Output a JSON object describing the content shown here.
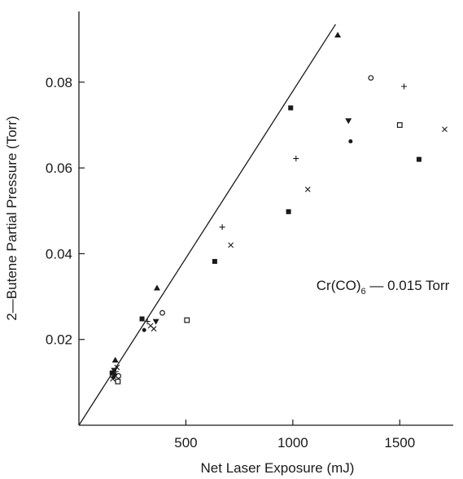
{
  "chart_data": {
    "type": "scatter",
    "xlabel": "Net Laser Exposure (mJ)",
    "ylabel": "2—Butene Partial Pressure (Torr)",
    "xlim": [
      0,
      1750
    ],
    "ylim": [
      0,
      0.0965
    ],
    "xticks": [
      500,
      1000,
      1500
    ],
    "xtick_labels": [
      "500",
      "1000",
      "1500"
    ],
    "yticks": [
      0.02,
      0.04,
      0.06,
      0.08
    ],
    "ytick_labels": [
      "0.02",
      "0.04",
      "0.06",
      "0.08"
    ],
    "grid": false,
    "annotation": {
      "prefix": "Cr(CO)",
      "subscript": "6",
      "suffix": " — 0.015 Torr",
      "x": 1110,
      "y": 0.0315
    },
    "fit_line": {
      "x": [
        0,
        1200
      ],
      "y": [
        0,
        0.0935
      ]
    },
    "points": [
      {
        "x": 155,
        "y": 0.0122,
        "marker": "filled-square"
      },
      {
        "x": 158,
        "y": 0.0108,
        "marker": "x"
      },
      {
        "x": 162,
        "y": 0.0112,
        "marker": "filled-circle"
      },
      {
        "x": 165,
        "y": 0.0128,
        "marker": "filled-down-triangle"
      },
      {
        "x": 168,
        "y": 0.0118,
        "marker": "filled-circle"
      },
      {
        "x": 170,
        "y": 0.0152,
        "marker": "filled-triangle"
      },
      {
        "x": 172,
        "y": 0.0125,
        "marker": "plus"
      },
      {
        "x": 178,
        "y": 0.0135,
        "marker": "x"
      },
      {
        "x": 182,
        "y": 0.0102,
        "marker": "open-square"
      },
      {
        "x": 185,
        "y": 0.0115,
        "marker": "open-circle"
      },
      {
        "x": 295,
        "y": 0.0248,
        "marker": "filled-square"
      },
      {
        "x": 305,
        "y": 0.0222,
        "marker": "filled-circle"
      },
      {
        "x": 320,
        "y": 0.0242,
        "marker": "plus"
      },
      {
        "x": 335,
        "y": 0.0232,
        "marker": "x"
      },
      {
        "x": 350,
        "y": 0.0225,
        "marker": "x"
      },
      {
        "x": 360,
        "y": 0.0242,
        "marker": "filled-down-triangle"
      },
      {
        "x": 365,
        "y": 0.032,
        "marker": "filled-triangle"
      },
      {
        "x": 390,
        "y": 0.0262,
        "marker": "open-circle"
      },
      {
        "x": 505,
        "y": 0.0245,
        "marker": "open-square"
      },
      {
        "x": 635,
        "y": 0.0382,
        "marker": "filled-square"
      },
      {
        "x": 670,
        "y": 0.0462,
        "marker": "plus"
      },
      {
        "x": 710,
        "y": 0.042,
        "marker": "x"
      },
      {
        "x": 980,
        "y": 0.0498,
        "marker": "filled-square"
      },
      {
        "x": 990,
        "y": 0.074,
        "marker": "filled-square"
      },
      {
        "x": 1015,
        "y": 0.0622,
        "marker": "plus"
      },
      {
        "x": 1070,
        "y": 0.055,
        "marker": "x"
      },
      {
        "x": 1210,
        "y": 0.091,
        "marker": "filled-triangle"
      },
      {
        "x": 1260,
        "y": 0.071,
        "marker": "filled-down-triangle"
      },
      {
        "x": 1270,
        "y": 0.0662,
        "marker": "filled-circle"
      },
      {
        "x": 1365,
        "y": 0.081,
        "marker": "open-circle"
      },
      {
        "x": 1500,
        "y": 0.07,
        "marker": "open-square"
      },
      {
        "x": 1520,
        "y": 0.079,
        "marker": "plus"
      },
      {
        "x": 1590,
        "y": 0.062,
        "marker": "filled-square"
      },
      {
        "x": 1710,
        "y": 0.069,
        "marker": "x"
      }
    ]
  }
}
